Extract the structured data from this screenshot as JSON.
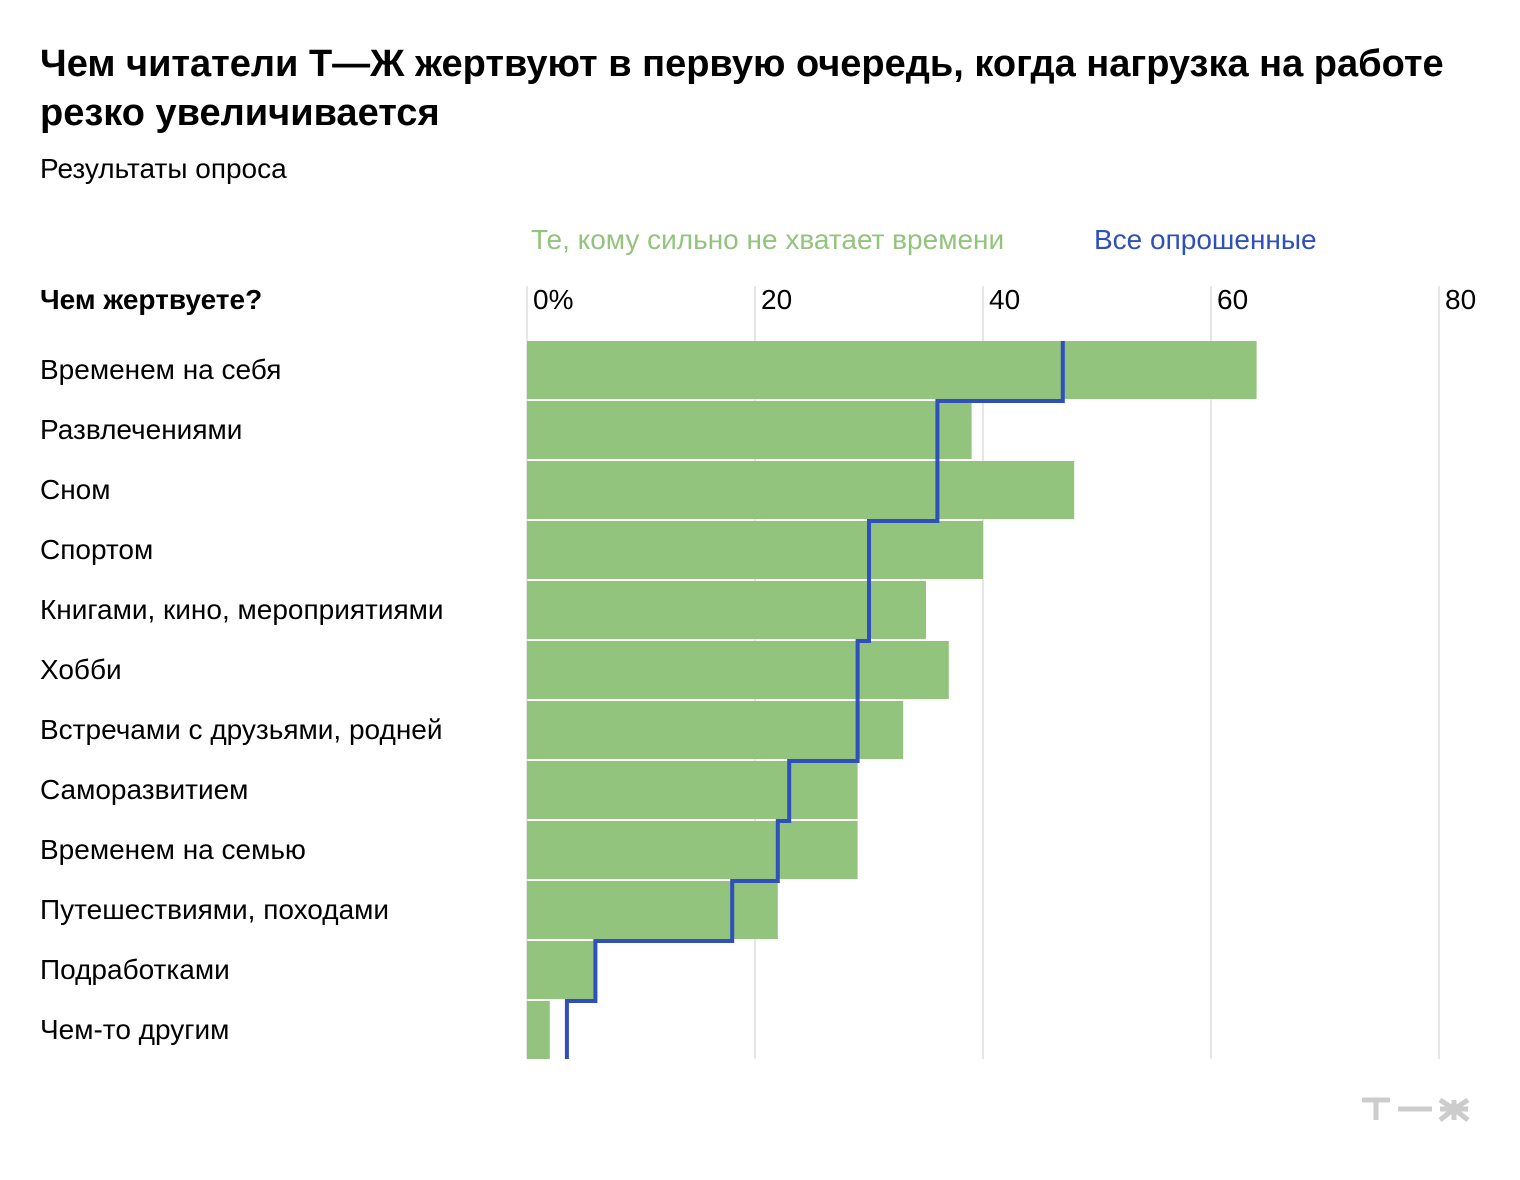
{
  "title": "Чем читатели Т—Ж жертвуют в первую очередь, когда нагрузка на работе резко увеличивается",
  "subtitle": "Результаты опроса",
  "colors": {
    "green": "#93c47d",
    "blue": "#2f4fbd",
    "grid": "#dddddd",
    "legend_green": "#93c47d",
    "legend_blue": "#2f4fbd",
    "logo": "#cccccc"
  },
  "logo_icon": "tzh-logo-icon",
  "chart_data": {
    "type": "bar",
    "orientation": "horizontal",
    "column_header": "Чем жертвуете?",
    "xlim": [
      0,
      80
    ],
    "ticks": [
      0,
      20,
      40,
      60,
      80
    ],
    "tick_labels": [
      "0%",
      "20",
      "40",
      "60",
      "80"
    ],
    "legend": {
      "placement": "top",
      "entries": [
        "Те, кому сильно не хватает времени",
        "Все опрошенные"
      ]
    },
    "categories": [
      "Временем на себя",
      "Развлечениями",
      "Сном",
      "Спортом",
      "Книгами, кино, мероприятиями",
      "Хобби",
      "Встречами с друзьями, родней",
      "Саморазвитием",
      "Временем на семью",
      "Путешествиями, походами",
      "Подработками",
      "Чем-то другим"
    ],
    "series": [
      {
        "name": "Те, кому сильно не хватает времени",
        "style": "bar",
        "values": [
          64,
          39,
          48,
          40,
          35,
          37,
          33,
          29,
          29,
          22,
          6,
          2
        ]
      },
      {
        "name": "Все опрошенные",
        "style": "step-line",
        "values": [
          47,
          36,
          36,
          30,
          30,
          29,
          29,
          23,
          22,
          18,
          6,
          3.5
        ]
      }
    ]
  }
}
